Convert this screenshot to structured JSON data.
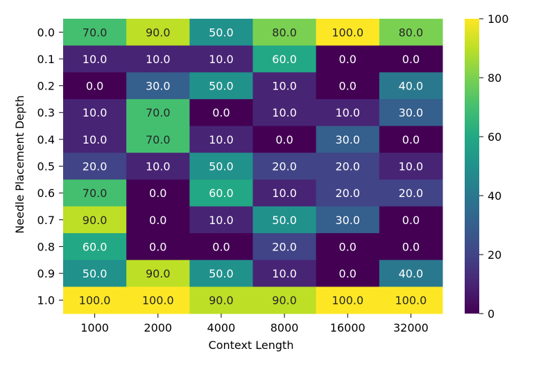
{
  "chart_data": {
    "type": "heatmap",
    "title": "",
    "xlabel": "Context Length",
    "ylabel": "Needle Placement Depth",
    "x_categories": [
      "1000",
      "2000",
      "4000",
      "8000",
      "16000",
      "32000"
    ],
    "y_categories": [
      "0.0",
      "0.1",
      "0.2",
      "0.3",
      "0.4",
      "0.5",
      "0.6",
      "0.7",
      "0.8",
      "0.9",
      "1.0"
    ],
    "values": [
      [
        70,
        90,
        50,
        80,
        100,
        80
      ],
      [
        10,
        10,
        10,
        60,
        0,
        0
      ],
      [
        0,
        30,
        50,
        10,
        0,
        40
      ],
      [
        10,
        70,
        0,
        10,
        10,
        30
      ],
      [
        10,
        70,
        10,
        0,
        30,
        0
      ],
      [
        20,
        10,
        50,
        20,
        20,
        10
      ],
      [
        70,
        0,
        60,
        10,
        20,
        20
      ],
      [
        90,
        0,
        10,
        50,
        30,
        0
      ],
      [
        60,
        0,
        0,
        20,
        0,
        0
      ],
      [
        50,
        90,
        50,
        10,
        0,
        40
      ],
      [
        100,
        100,
        90,
        90,
        100,
        100
      ]
    ],
    "value_format_decimals": 1,
    "colormap": "viridis",
    "vmin": 0,
    "vmax": 100,
    "colorbar_ticks": [
      "0",
      "20",
      "40",
      "60",
      "80",
      "100"
    ],
    "grid": false
  }
}
